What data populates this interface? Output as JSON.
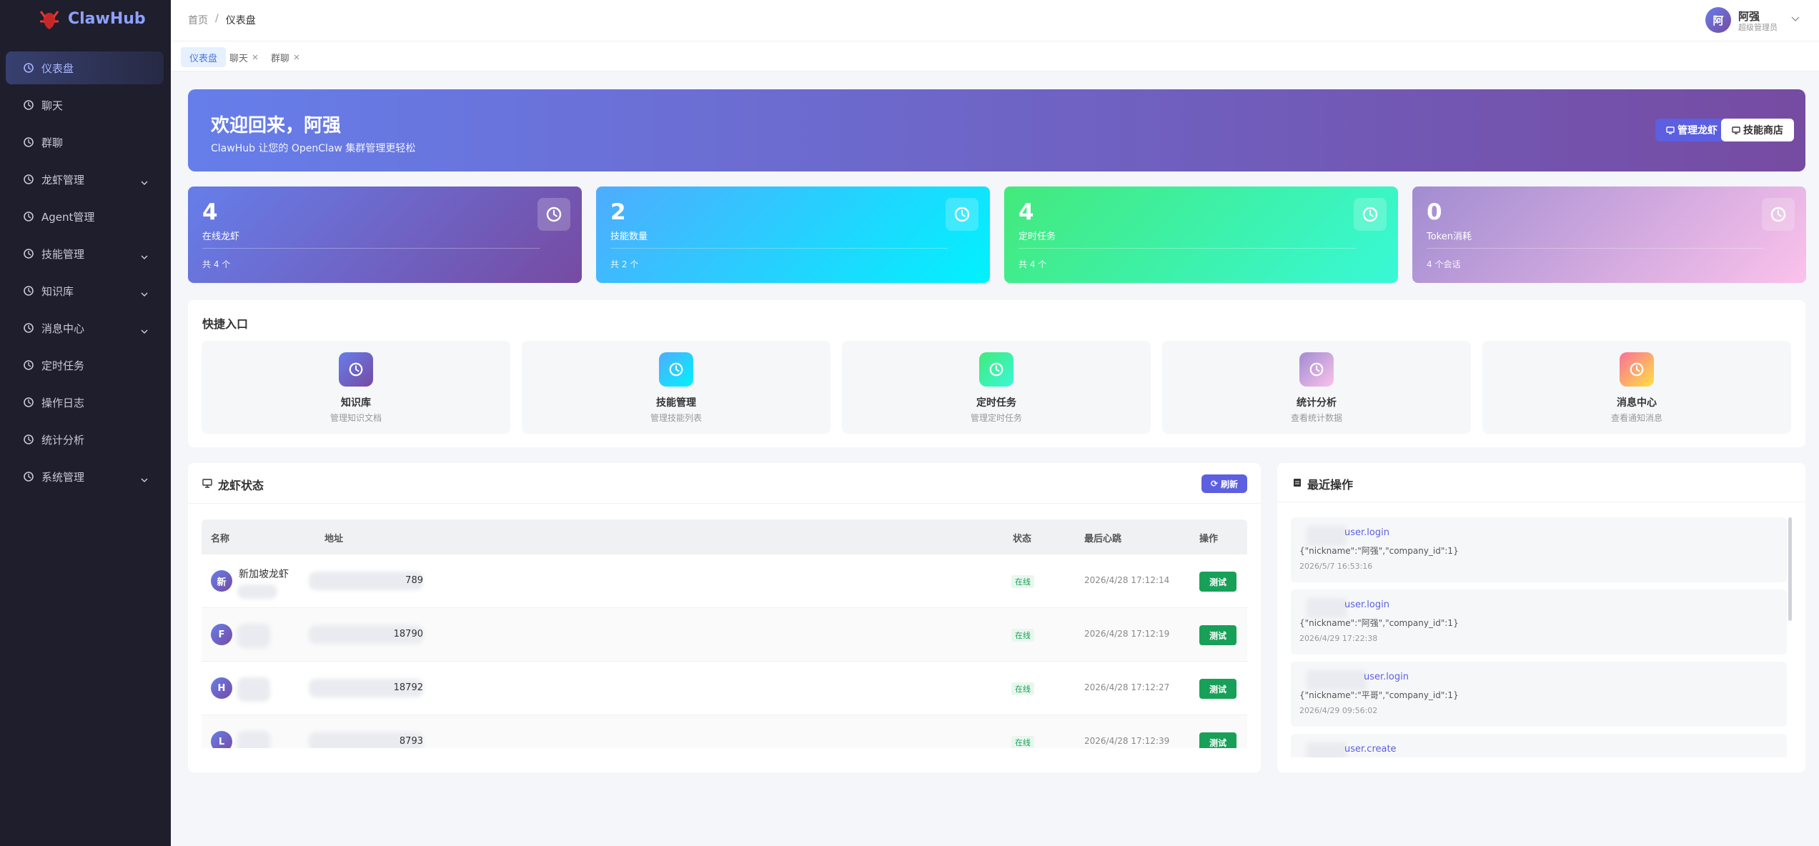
{
  "sidebar": {
    "brand": "ClawHub",
    "menu": [
      {
        "label": "仪表盘",
        "active": true,
        "expandable": false
      },
      {
        "label": "聊天",
        "active": false,
        "expandable": false
      },
      {
        "label": "群聊",
        "active": false,
        "expandable": false
      },
      {
        "label": "龙虾管理",
        "active": false,
        "expandable": true
      },
      {
        "label": "Agent管理",
        "active": false,
        "expandable": false
      },
      {
        "label": "技能管理",
        "active": false,
        "expandable": true
      },
      {
        "label": "知识库",
        "active": false,
        "expandable": true
      },
      {
        "label": "消息中心",
        "active": false,
        "expandable": true
      },
      {
        "label": "定时任务",
        "active": false,
        "expandable": false
      },
      {
        "label": "操作日志",
        "active": false,
        "expandable": false
      },
      {
        "label": "统计分析",
        "active": false,
        "expandable": false
      },
      {
        "label": "系统管理",
        "active": false,
        "expandable": true
      }
    ]
  },
  "header": {
    "breadcrumb": [
      "首页",
      "仪表盘"
    ],
    "breadcrumb_separator": "/",
    "user": {
      "avatar": "阿",
      "name": "阿强",
      "role": "超级管理员"
    }
  },
  "tabs": [
    {
      "label": "仪表盘",
      "active": true,
      "closable": false
    },
    {
      "label": "聊天",
      "active": false,
      "closable": true
    },
    {
      "label": "群聊",
      "active": false,
      "closable": true
    }
  ],
  "banner": {
    "title": "欢迎回来，阿强",
    "subtitle": "ClawHub 让您的 OpenClaw 集群管理更轻松",
    "buttons": [
      "管理龙虾",
      "技能商店"
    ]
  },
  "stats": [
    {
      "value": 4,
      "label": "在线龙虾",
      "footer": "共 4 个"
    },
    {
      "value": 2,
      "label": "技能数量",
      "footer": "共 2 个"
    },
    {
      "value": 4,
      "label": "定时任务",
      "footer": "共 4 个"
    },
    {
      "value": 0,
      "label": "Token消耗",
      "footer": "4 个会话"
    }
  ],
  "quick_entry": {
    "title": "快捷入口",
    "items": [
      {
        "title": "知识库",
        "desc": "管理知识文档"
      },
      {
        "title": "技能管理",
        "desc": "管理技能列表"
      },
      {
        "title": "定时任务",
        "desc": "管理定时任务"
      },
      {
        "title": "统计分析",
        "desc": "查看统计数据"
      },
      {
        "title": "消息中心",
        "desc": "查看通知消息"
      }
    ]
  },
  "lobster_status": {
    "title": "龙虾状态",
    "refresh": "刷新",
    "columns": [
      "名称",
      "地址",
      "状态",
      "最后心跳",
      "操作"
    ],
    "rows": [
      {
        "avatar": "新",
        "name": "新加坡龙虾",
        "address": "789",
        "status": "在线",
        "heartbeat": "2026/4/28 17:12:14",
        "action": "测试"
      },
      {
        "avatar": "F",
        "address": "18790",
        "status": "在线",
        "heartbeat": "2026/4/28 17:12:19",
        "action": "测试"
      },
      {
        "avatar": "H",
        "address": "18792",
        "status": "在线",
        "heartbeat": "2026/4/28 17:12:27",
        "action": "测试"
      },
      {
        "avatar": "L",
        "address": "8793",
        "status": "在线",
        "heartbeat": "2026/4/28 17:12:39",
        "action": "测试"
      }
    ]
  },
  "recent_ops": {
    "title": "最近操作",
    "items": [
      {
        "action": "user.login",
        "detail": "{\"nickname\":\"阿强\",\"company_id\":1}",
        "time": "2026/5/7 16:53:16"
      },
      {
        "action": "user.login",
        "detail": "{\"nickname\":\"阿强\",\"company_id\":1}",
        "time": "2026/4/29 17:22:38"
      },
      {
        "action": "user.login",
        "detail": "{\"nickname\":\"平哥\",\"company_id\":1}",
        "time": "2026/4/29 09:56:02"
      },
      {
        "action": "user.create"
      }
    ]
  }
}
